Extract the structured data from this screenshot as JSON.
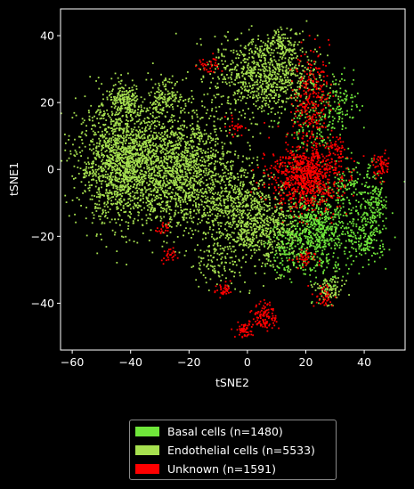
{
  "chart_data": {
    "type": "scatter",
    "title": "",
    "xlabel": "tSNE2",
    "ylabel": "tSNE1",
    "xlim": [
      -64,
      54
    ],
    "ylim": [
      -54,
      48
    ],
    "x_ticks": [
      -60,
      -40,
      -20,
      0,
      20,
      40
    ],
    "y_ticks": [
      -40,
      -20,
      0,
      20,
      40
    ],
    "grid": false,
    "legend_position": "below",
    "background": "#000000",
    "series": [
      {
        "name": "Basal cells (n=1480)",
        "color": "#6fe63a",
        "clusters": [
          {
            "cx": 24,
            "cy": -18,
            "sx": 5.5,
            "sy": 6.5,
            "n": 650
          },
          {
            "cx": 41,
            "cy": -20,
            "sx": 3.5,
            "sy": 4,
            "n": 200
          },
          {
            "cx": 36,
            "cy": -5,
            "sx": 5,
            "sy": 4,
            "n": 150
          },
          {
            "cx": 22,
            "cy": 12,
            "sx": 5,
            "sy": 6,
            "n": 150
          },
          {
            "cx": 14,
            "cy": -24,
            "sx": 4,
            "sy": 4,
            "n": 130
          },
          {
            "cx": 32,
            "cy": 20,
            "sx": 3,
            "sy": 4,
            "n": 100
          },
          {
            "cx": 44,
            "cy": -10,
            "sx": 2,
            "sy": 3,
            "n": 100
          }
        ]
      },
      {
        "name": "Endothelial cells (n=5533)",
        "color": "#a6e04f",
        "clusters": [
          {
            "cx": -42,
            "cy": 2,
            "sx": 8,
            "sy": 9,
            "n": 1700
          },
          {
            "cx": -22,
            "cy": 0,
            "sx": 8,
            "sy": 9,
            "n": 1300
          },
          {
            "cx": 6,
            "cy": 28,
            "sx": 9,
            "sy": 6,
            "n": 900
          },
          {
            "cx": -3,
            "cy": -12,
            "sx": 6,
            "sy": 8,
            "n": 650
          },
          {
            "cx": -42,
            "cy": 20,
            "sx": 3,
            "sy": 2.5,
            "n": 180
          },
          {
            "cx": -28,
            "cy": 22,
            "sx": 3,
            "sy": 2.5,
            "n": 130
          },
          {
            "cx": 28,
            "cy": -36,
            "sx": 2.5,
            "sy": 2,
            "n": 100
          },
          {
            "cx": 8,
            "cy": -18,
            "sx": 6,
            "sy": 6,
            "n": 400
          },
          {
            "cx": 12,
            "cy": 38,
            "sx": 3,
            "sy": 2,
            "n": 80
          },
          {
            "cx": -10,
            "cy": -28,
            "sx": 5,
            "sy": 3,
            "n": 93
          }
        ]
      },
      {
        "name": "Unknown (n=1591)",
        "color": "#ff0000",
        "clusters": [
          {
            "cx": 20,
            "cy": -2,
            "sx": 6,
            "sy": 5,
            "n": 850
          },
          {
            "cx": 22,
            "cy": 22,
            "sx": 3,
            "sy": 7,
            "n": 250
          },
          {
            "cx": 6,
            "cy": -44,
            "sx": 2,
            "sy": 2,
            "n": 110
          },
          {
            "cx": -1,
            "cy": -48,
            "sx": 1.5,
            "sy": 1.2,
            "n": 60
          },
          {
            "cx": 46,
            "cy": 1,
            "sx": 1.5,
            "sy": 2,
            "n": 60
          },
          {
            "cx": 31,
            "cy": 6,
            "sx": 1.5,
            "sy": 2,
            "n": 40
          },
          {
            "cx": -8,
            "cy": -36,
            "sx": 1.5,
            "sy": 1.2,
            "n": 35
          },
          {
            "cx": -13,
            "cy": 31,
            "sx": 2,
            "sy": 1.5,
            "n": 35
          },
          {
            "cx": 19,
            "cy": -27,
            "sx": 2,
            "sy": 1.5,
            "n": 40
          },
          {
            "cx": -27,
            "cy": -26,
            "sx": 1.2,
            "sy": 1.2,
            "n": 25
          },
          {
            "cx": -29,
            "cy": -18,
            "sx": 1,
            "sy": 1,
            "n": 20
          },
          {
            "cx": 26,
            "cy": -38,
            "sx": 2,
            "sy": 2,
            "n": 40
          },
          {
            "cx": -4,
            "cy": 13,
            "sx": 1.5,
            "sy": 1.5,
            "n": 26
          }
        ]
      }
    ]
  },
  "legend": {
    "items": [
      {
        "label": "Basal cells (n=1480)",
        "color": "#6fe63a"
      },
      {
        "label": "Endothelial cells (n=5533)",
        "color": "#a6e04f"
      },
      {
        "label": "Unknown (n=1591)",
        "color": "#ff0000"
      }
    ]
  }
}
